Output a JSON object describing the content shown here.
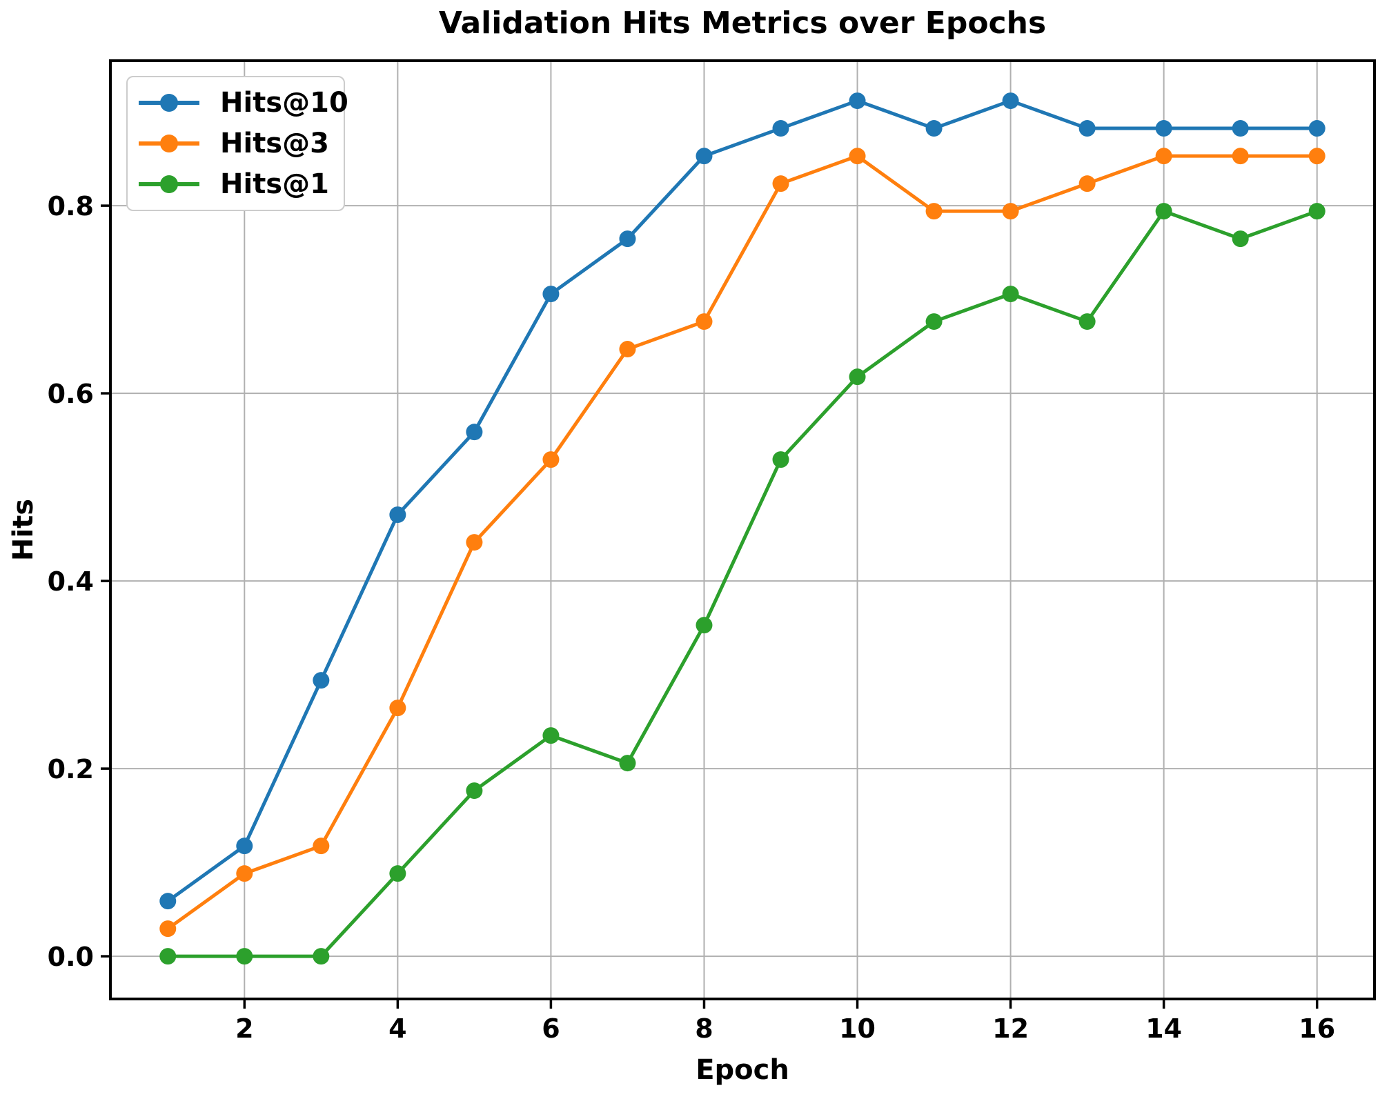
{
  "chart_data": {
    "type": "line",
    "title": "Validation Hits Metrics over Epochs",
    "xlabel": "Epoch",
    "ylabel": "Hits",
    "x": [
      1,
      2,
      3,
      4,
      5,
      6,
      7,
      8,
      9,
      10,
      11,
      12,
      13,
      14,
      15,
      16
    ],
    "series": [
      {
        "name": "Hits@10",
        "color": "#1f77b4",
        "values": [
          0.0588,
          0.1176,
          0.2941,
          0.4706,
          0.5588,
          0.7059,
          0.7647,
          0.8529,
          0.8824,
          0.9118,
          0.8824,
          0.9118,
          0.8824,
          0.8824,
          0.8824,
          0.8824
        ]
      },
      {
        "name": "Hits@3",
        "color": "#ff7f0e",
        "values": [
          0.0294,
          0.0882,
          0.1176,
          0.2647,
          0.4412,
          0.5294,
          0.6471,
          0.6765,
          0.8235,
          0.8529,
          0.7941,
          0.7941,
          0.8235,
          0.8529,
          0.8529,
          0.8529
        ]
      },
      {
        "name": "Hits@1",
        "color": "#2ca02c",
        "values": [
          0.0,
          0.0,
          0.0,
          0.0882,
          0.1765,
          0.2353,
          0.2059,
          0.3529,
          0.5294,
          0.6176,
          0.6765,
          0.7059,
          0.6765,
          0.7941,
          0.7647,
          0.7941
        ]
      }
    ],
    "x_ticks": [
      2,
      4,
      6,
      8,
      10,
      12,
      14,
      16
    ],
    "y_ticks": [
      0.0,
      0.2,
      0.4,
      0.6,
      0.8
    ],
    "y_tick_labels": [
      "0.0",
      "0.2",
      "0.4",
      "0.6",
      "0.8"
    ],
    "xlim": [
      0.25,
      16.75
    ],
    "ylim": [
      -0.0455,
      0.9545
    ],
    "grid": true,
    "legend_position": "upper left",
    "grid_color": "#b0b0b0",
    "axis_color": "#000000",
    "background": "#ffffff"
  }
}
